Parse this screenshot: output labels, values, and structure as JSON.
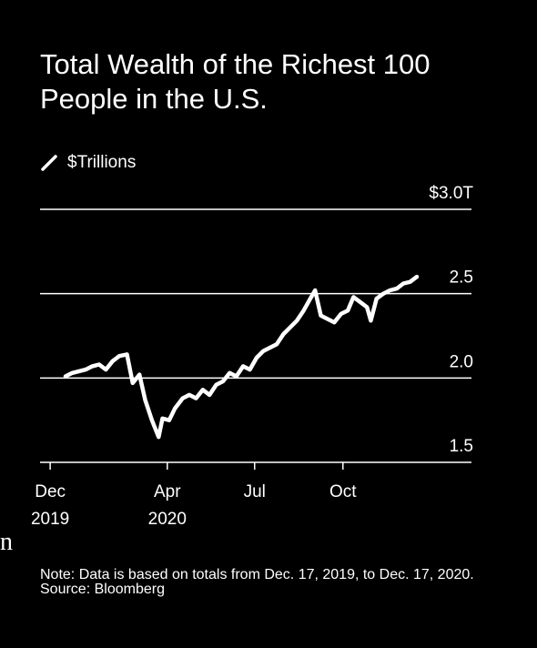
{
  "title": "Total Wealth of the Richest 100 People in the U.S.",
  "legend": {
    "label": "$Trillions",
    "icon": "line-swatch-icon",
    "color": "#ffffff"
  },
  "colors": {
    "background": "#000000",
    "line": "#ffffff",
    "grid": "#ffffff"
  },
  "notes": {
    "note": "Note: Data is based on totals from Dec. 17, 2019, to Dec. 17, 2020.",
    "source": "Source: Bloomberg"
  },
  "stray_glyph": "n",
  "chart_data": {
    "type": "line",
    "title": "Total Wealth of the Richest 100 People in the U.S.",
    "ylabel": "$Trillions",
    "ylim": [
      1.5,
      3.0
    ],
    "yticks": [
      {
        "value": 3.0,
        "label": "$3.0T"
      },
      {
        "value": 2.5,
        "label": "2.5"
      },
      {
        "value": 2.0,
        "label": "2.0"
      },
      {
        "value": 1.5,
        "label": "1.5"
      }
    ],
    "xlim": [
      "2019-12-17",
      "2020-12-17"
    ],
    "xticks": [
      {
        "date": "2019-12-01",
        "month": "Dec",
        "year": "2019"
      },
      {
        "date": "2020-04-01",
        "month": "Apr",
        "year": "2020"
      },
      {
        "date": "2020-07-01",
        "month": "Jul",
        "year": ""
      },
      {
        "date": "2020-10-01",
        "month": "Oct",
        "year": ""
      }
    ],
    "grid": true,
    "series": [
      {
        "points": [
          [
            "2019-12-17",
            2.01
          ],
          [
            "2019-12-24",
            2.03
          ],
          [
            "2019-12-31",
            2.04
          ],
          [
            "2020-01-07",
            2.05
          ],
          [
            "2020-01-14",
            2.07
          ],
          [
            "2020-01-21",
            2.08
          ],
          [
            "2020-01-28",
            2.05
          ],
          [
            "2020-02-04",
            2.1
          ],
          [
            "2020-02-11",
            2.13
          ],
          [
            "2020-02-19",
            2.14
          ],
          [
            "2020-02-25",
            1.97
          ],
          [
            "2020-03-03",
            2.02
          ],
          [
            "2020-03-09",
            1.87
          ],
          [
            "2020-03-16",
            1.75
          ],
          [
            "2020-03-23",
            1.65
          ],
          [
            "2020-03-27",
            1.76
          ],
          [
            "2020-04-03",
            1.75
          ],
          [
            "2020-04-09",
            1.82
          ],
          [
            "2020-04-17",
            1.88
          ],
          [
            "2020-04-24",
            1.9
          ],
          [
            "2020-05-01",
            1.88
          ],
          [
            "2020-05-08",
            1.93
          ],
          [
            "2020-05-15",
            1.9
          ],
          [
            "2020-05-22",
            1.96
          ],
          [
            "2020-05-29",
            1.98
          ],
          [
            "2020-06-05",
            2.03
          ],
          [
            "2020-06-12",
            2.01
          ],
          [
            "2020-06-19",
            2.07
          ],
          [
            "2020-06-26",
            2.05
          ],
          [
            "2020-07-03",
            2.12
          ],
          [
            "2020-07-10",
            2.16
          ],
          [
            "2020-07-17",
            2.18
          ],
          [
            "2020-07-24",
            2.2
          ],
          [
            "2020-07-31",
            2.26
          ],
          [
            "2020-08-07",
            2.3
          ],
          [
            "2020-08-14",
            2.34
          ],
          [
            "2020-08-21",
            2.4
          ],
          [
            "2020-08-28",
            2.47
          ],
          [
            "2020-09-02",
            2.52
          ],
          [
            "2020-09-08",
            2.37
          ],
          [
            "2020-09-15",
            2.35
          ],
          [
            "2020-09-22",
            2.33
          ],
          [
            "2020-09-29",
            2.38
          ],
          [
            "2020-10-06",
            2.4
          ],
          [
            "2020-10-12",
            2.48
          ],
          [
            "2020-10-19",
            2.45
          ],
          [
            "2020-10-26",
            2.42
          ],
          [
            "2020-10-30",
            2.34
          ],
          [
            "2020-11-05",
            2.47
          ],
          [
            "2020-11-12",
            2.5
          ],
          [
            "2020-11-19",
            2.52
          ],
          [
            "2020-11-26",
            2.53
          ],
          [
            "2020-12-03",
            2.56
          ],
          [
            "2020-12-10",
            2.57
          ],
          [
            "2020-12-17",
            2.6
          ]
        ]
      }
    ]
  }
}
